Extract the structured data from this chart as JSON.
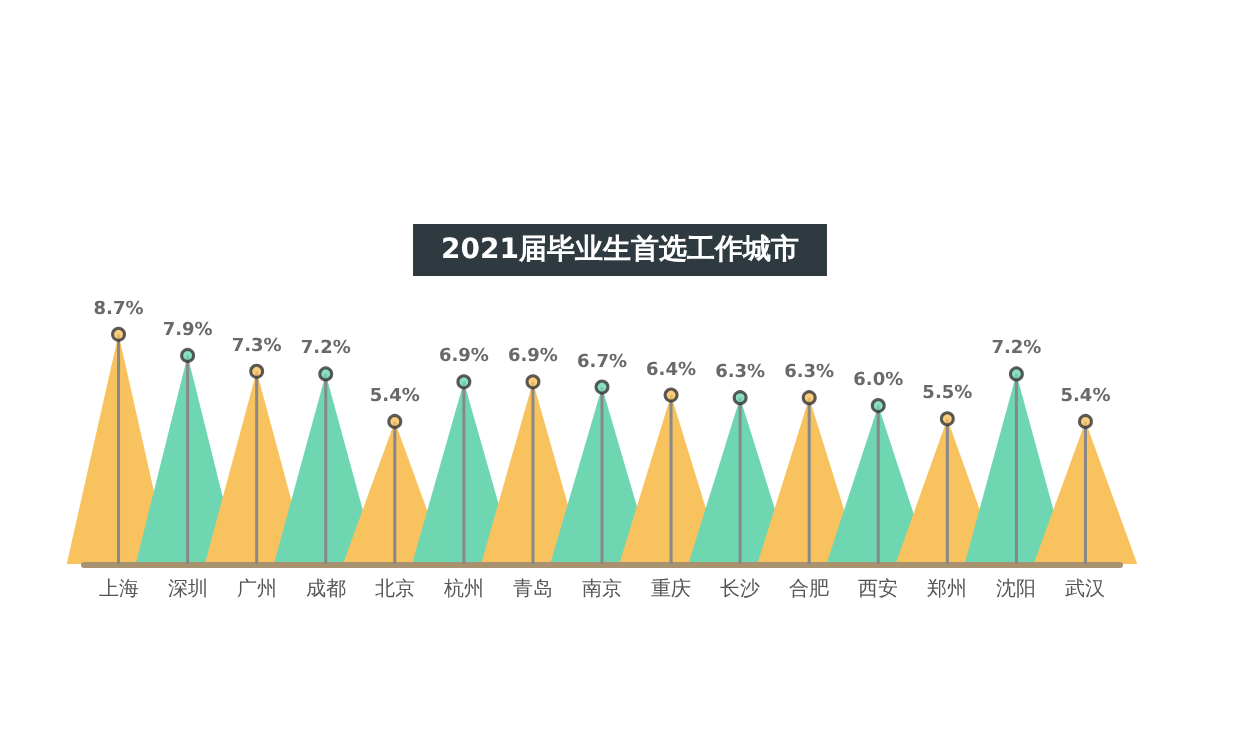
{
  "chart_data": {
    "type": "lollipop",
    "title": "2021届毕业生首选工作城市",
    "categories": [
      "上海",
      "深圳",
      "广州",
      "成都",
      "北京",
      "杭州",
      "青岛",
      "南京",
      "重庆",
      "长沙",
      "合肥",
      "西安",
      "郑州",
      "沈阳",
      "武汉"
    ],
    "values": [
      8.7,
      7.9,
      7.3,
      7.2,
      5.4,
      6.9,
      6.9,
      6.7,
      6.4,
      6.3,
      6.3,
      6.0,
      5.5,
      7.2,
      5.4
    ],
    "value_labels": [
      "8.7%",
      "7.9%",
      "7.3%",
      "7.2%",
      "5.4%",
      "6.9%",
      "6.9%",
      "6.7%",
      "6.4%",
      "6.3%",
      "6.3%",
      "6.0%",
      "5.5%",
      "7.2%",
      "5.4%"
    ],
    "colors": [
      "#f8c25e",
      "#6fd6b2",
      "#f8c25e",
      "#6fd6b2",
      "#f8c25e",
      "#6fd6b2",
      "#f8c25e",
      "#6fd6b2",
      "#f8c25e",
      "#6fd6b2",
      "#f8c25e",
      "#6fd6b2",
      "#f8c25e",
      "#6fd6b2",
      "#f8c25e"
    ],
    "tick_labels": "x"
  }
}
